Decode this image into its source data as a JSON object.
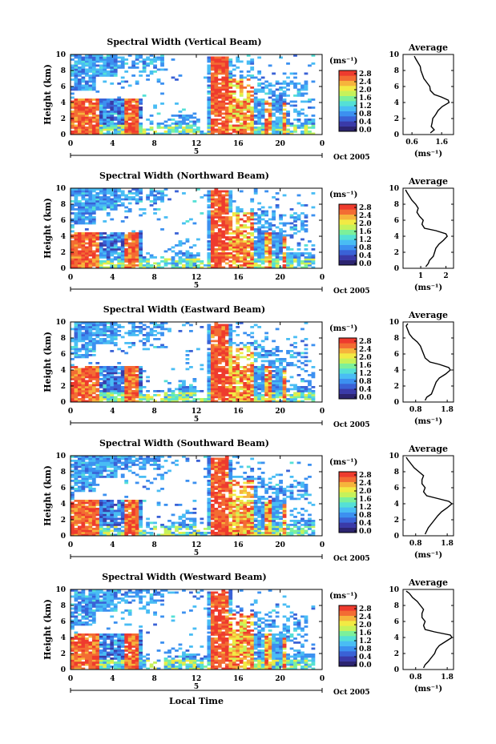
{
  "figure": {
    "xlabel": "Local Time",
    "date_label": "Oct 2005"
  },
  "colors": {
    "colormap": [
      "#2c2470",
      "#3a3aa8",
      "#3a62d6",
      "#3c90f0",
      "#49bdf4",
      "#55e0d6",
      "#7cf09a",
      "#c6f25a",
      "#f2ea44",
      "#f6b43c",
      "#f36c33",
      "#ee3b2e"
    ]
  },
  "chart_data": [
    {
      "type": "heatmap",
      "title": "Spectral Width (Vertical Beam)",
      "ylabel": "Height (km)",
      "x_ticks": [
        "0",
        "4",
        "8",
        "12",
        "16",
        "20",
        "0"
      ],
      "day_label": "5",
      "xlim": [
        0,
        24
      ],
      "y_ticks": [
        "0",
        "2",
        "4",
        "6",
        "8",
        "10"
      ],
      "ylim": [
        0,
        10
      ],
      "colorbar": {
        "unit": "(ms⁻¹)",
        "ticks": [
          "0.0",
          "0.4",
          "0.8",
          "1.2",
          "1.6",
          "2.0",
          "2.4",
          "2.8"
        ],
        "range": [
          0,
          2.8
        ]
      },
      "average": {
        "title": "Average",
        "xlabel": "(ms⁻¹)",
        "x_ticks": [
          "0.6",
          "1.6"
        ],
        "xlim": [
          0.3,
          2.0
        ],
        "height_km": [
          0.2,
          0.6,
          1,
          1.5,
          2,
          2.5,
          3,
          3.5,
          4,
          4.3,
          4.7,
          5,
          5.5,
          6,
          6.5,
          7,
          7.5,
          8,
          8.5,
          9,
          9.5,
          9.8
        ],
        "width": [
          1.22,
          1.35,
          1.25,
          1.28,
          1.3,
          1.4,
          1.48,
          1.62,
          1.85,
          1.82,
          1.58,
          1.35,
          1.22,
          1.2,
          1.1,
          1.0,
          0.95,
          0.9,
          0.88,
          0.8,
          0.72,
          0.68
        ]
      }
    },
    {
      "type": "heatmap",
      "title": "Spectral Width (Northward Beam)",
      "ylabel": "Height (km)",
      "x_ticks": [
        "0",
        "4",
        "8",
        "12",
        "16",
        "20",
        "0"
      ],
      "day_label": "5",
      "xlim": [
        0,
        24
      ],
      "y_ticks": [
        "0",
        "2",
        "4",
        "6",
        "8",
        "10"
      ],
      "ylim": [
        0,
        10
      ],
      "colorbar": {
        "unit": "(ms⁻¹)",
        "ticks": [
          "0.0",
          "0.4",
          "0.8",
          "1.2",
          "1.6",
          "2.0",
          "2.4",
          "2.8"
        ],
        "range": [
          0,
          2.8
        ]
      },
      "average": {
        "title": "Average",
        "xlabel": "(ms⁻¹)",
        "x_ticks": [
          "1",
          "2"
        ],
        "xlim": [
          0.3,
          2.3
        ],
        "height_km": [
          0.2,
          0.6,
          1,
          1.5,
          2,
          2.5,
          3,
          3.5,
          4,
          4.3,
          4.7,
          5,
          5.5,
          6,
          6.5,
          7,
          7.5,
          8,
          8.5,
          9,
          9.5,
          9.8
        ],
        "width": [
          1.2,
          1.3,
          1.35,
          1.5,
          1.55,
          1.6,
          1.72,
          1.9,
          2.05,
          2.0,
          1.6,
          1.15,
          1.05,
          1.1,
          0.95,
          0.85,
          0.9,
          0.8,
          0.65,
          0.55,
          0.45,
          0.4
        ]
      }
    },
    {
      "type": "heatmap",
      "title": "Spectral Width (Eastward Beam)",
      "ylabel": "Height (km)",
      "x_ticks": [
        "0",
        "4",
        "8",
        "12",
        "16",
        "20",
        "0"
      ],
      "day_label": "5",
      "xlim": [
        0,
        24
      ],
      "y_ticks": [
        "0",
        "2",
        "4",
        "6",
        "8",
        "10"
      ],
      "ylim": [
        0,
        10
      ],
      "colorbar": {
        "unit": "(ms⁻¹)",
        "ticks": [
          "0.0",
          "0.4",
          "0.8",
          "1.2",
          "1.6",
          "2.0",
          "2.4",
          "2.8"
        ],
        "range": [
          0,
          2.8
        ]
      },
      "average": {
        "title": "Average",
        "xlabel": "(ms⁻¹)",
        "x_ticks": [
          "0.8",
          "1.8"
        ],
        "xlim": [
          0.4,
          2.0
        ],
        "height_km": [
          0.2,
          0.6,
          1,
          1.5,
          2,
          2.5,
          3,
          3.5,
          4,
          4.3,
          4.7,
          5,
          5.5,
          6,
          6.5,
          7,
          7.5,
          8,
          8.5,
          9,
          9.5,
          9.8
        ],
        "width": [
          1.1,
          1.15,
          1.3,
          1.35,
          1.4,
          1.45,
          1.55,
          1.75,
          1.9,
          1.85,
          1.55,
          1.25,
          1.1,
          1.05,
          1.0,
          0.95,
          0.85,
          0.7,
          0.6,
          0.55,
          0.5,
          0.55
        ]
      }
    },
    {
      "type": "heatmap",
      "title": "Spectral Width (Southward Beam)",
      "ylabel": "Height (km)",
      "x_ticks": [
        "0",
        "4",
        "8",
        "12",
        "16",
        "20",
        "0"
      ],
      "day_label": "5",
      "xlim": [
        0,
        24
      ],
      "y_ticks": [
        "0",
        "2",
        "4",
        "6",
        "8",
        "10"
      ],
      "ylim": [
        0,
        10
      ],
      "colorbar": {
        "unit": "(ms⁻¹)",
        "ticks": [
          "0.0",
          "0.4",
          "0.8",
          "1.2",
          "1.6",
          "2.0",
          "2.4",
          "2.8"
        ],
        "range": [
          0,
          2.8
        ]
      },
      "average": {
        "title": "Average",
        "xlabel": "(ms⁻¹)",
        "x_ticks": [
          "0.8",
          "1.8"
        ],
        "xlim": [
          0.4,
          2.0
        ],
        "height_km": [
          0.2,
          0.6,
          1,
          1.5,
          2,
          2.5,
          3,
          3.5,
          4,
          4.3,
          4.7,
          5,
          5.5,
          6,
          6.5,
          7,
          7.5,
          8,
          8.5,
          9,
          9.5,
          9.8
        ],
        "width": [
          1.1,
          1.15,
          1.2,
          1.3,
          1.4,
          1.5,
          1.62,
          1.8,
          1.95,
          1.85,
          1.45,
          1.15,
          1.05,
          1.1,
          1.0,
          1.0,
          1.05,
          0.9,
          0.75,
          0.65,
          0.55,
          0.5
        ]
      }
    },
    {
      "type": "heatmap",
      "title": "Spectral Width (Westward Beam)",
      "ylabel": "Height (km)",
      "x_ticks": [
        "0",
        "4",
        "8",
        "12",
        "16",
        "20",
        "0"
      ],
      "day_label": "5",
      "xlim": [
        0,
        24
      ],
      "y_ticks": [
        "0",
        "2",
        "4",
        "6",
        "8",
        "10"
      ],
      "ylim": [
        0,
        10
      ],
      "colorbar": {
        "unit": "(ms⁻¹)",
        "ticks": [
          "0.0",
          "0.4",
          "0.8",
          "1.2",
          "1.6",
          "2.0",
          "2.4",
          "2.8"
        ],
        "range": [
          0,
          2.8
        ]
      },
      "average": {
        "title": "Average",
        "xlabel": "(ms⁻¹)",
        "x_ticks": [
          "0.8",
          "1.8"
        ],
        "xlim": [
          0.4,
          2.0
        ],
        "height_km": [
          0.2,
          0.6,
          1,
          1.5,
          2,
          2.5,
          3,
          3.5,
          4,
          4.3,
          4.7,
          5,
          5.5,
          6,
          6.5,
          7,
          7.5,
          8,
          8.5,
          9,
          9.5,
          9.8
        ],
        "width": [
          1.05,
          1.1,
          1.2,
          1.3,
          1.4,
          1.45,
          1.55,
          1.75,
          1.95,
          1.9,
          1.4,
          1.1,
          1.05,
          1.1,
          1.0,
          1.0,
          1.05,
          0.95,
          0.85,
          0.7,
          0.6,
          0.5
        ]
      }
    }
  ]
}
